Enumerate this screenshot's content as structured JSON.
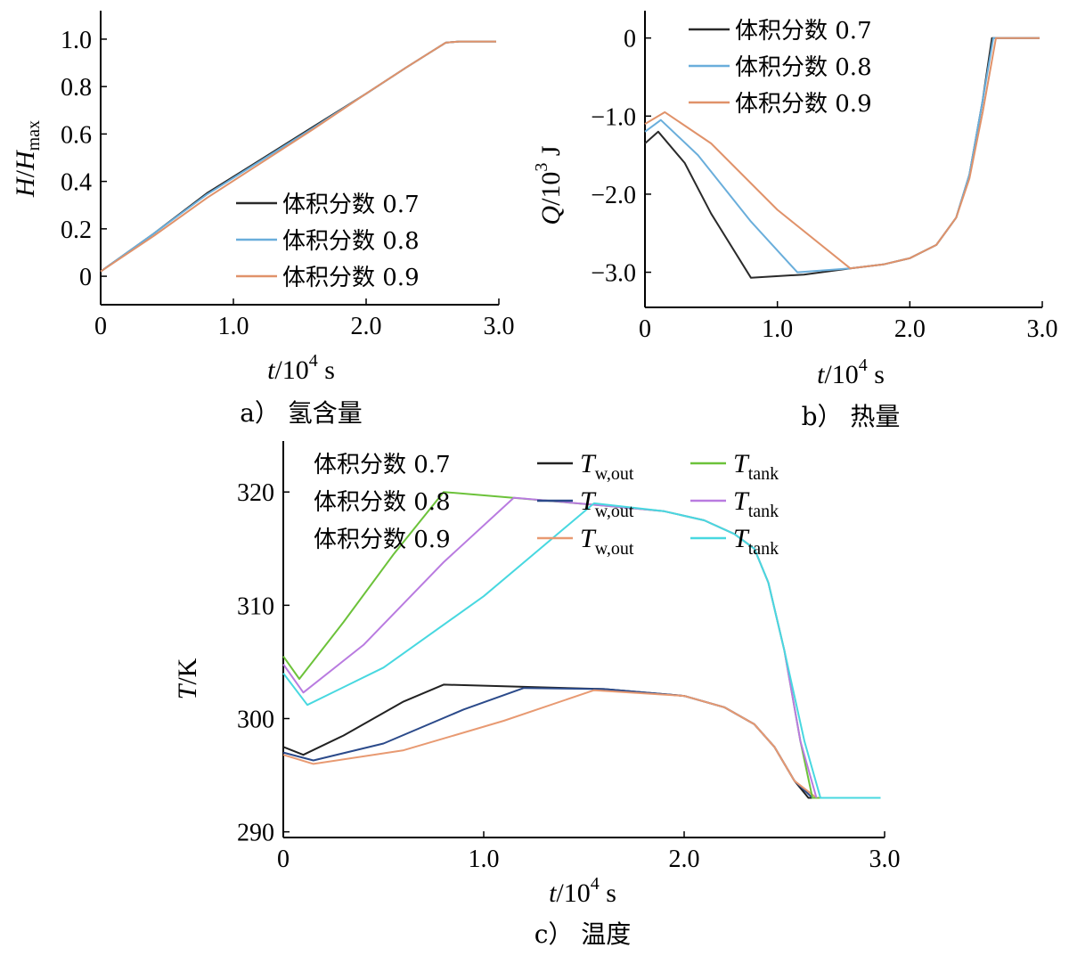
{
  "chart_data": [
    {
      "type": "line",
      "caption": "a） 氢含量",
      "ylabel": {
        "main": "H",
        "sep": "/",
        "main2": "H",
        "sub": "max"
      },
      "xlabel": {
        "var": "t",
        "unit_pre": "/10",
        "exp": "4",
        "unit_post": " s"
      },
      "xlim": [
        0,
        3.0
      ],
      "ylim": [
        -0.12,
        1.12
      ],
      "xticks": [
        "0",
        "1.0",
        "2.0",
        "3.0"
      ],
      "yticks": [
        "0",
        "0.2",
        "0.4",
        "0.6",
        "0.8",
        "1.0"
      ],
      "legend": {
        "position": "right-middle"
      },
      "series": [
        {
          "name": "体积分数 0.7",
          "color": "#2a2a2a",
          "x": [
            0,
            0.4,
            0.8,
            1.2,
            1.6,
            2.0,
            2.3,
            2.5,
            2.6,
            2.7,
            2.98
          ],
          "y": [
            0.02,
            0.18,
            0.35,
            0.49,
            0.63,
            0.77,
            0.88,
            0.95,
            0.985,
            0.99,
            0.99
          ]
        },
        {
          "name": "体积分数 0.8",
          "color": "#6aaedb",
          "x": [
            0,
            0.4,
            0.8,
            1.2,
            1.6,
            2.0,
            2.3,
            2.5,
            2.6,
            2.7,
            2.98
          ],
          "y": [
            0.02,
            0.18,
            0.345,
            0.485,
            0.625,
            0.77,
            0.88,
            0.95,
            0.985,
            0.99,
            0.99
          ]
        },
        {
          "name": "体积分数 0.9",
          "color": "#e0926a",
          "x": [
            0,
            0.4,
            0.8,
            1.2,
            1.6,
            2.0,
            2.3,
            2.5,
            2.6,
            2.7,
            2.98
          ],
          "y": [
            0.02,
            0.17,
            0.33,
            0.475,
            0.62,
            0.77,
            0.88,
            0.95,
            0.985,
            0.99,
            0.99
          ]
        }
      ]
    },
    {
      "type": "line",
      "caption": "b） 热量",
      "ylabel": {
        "main": "Q",
        "unit_pre": "/10",
        "exp": "3",
        "unit_post": " J"
      },
      "xlabel": {
        "var": "t",
        "unit_pre": "/10",
        "exp": "4",
        "unit_post": " s"
      },
      "xlim": [
        0,
        3.0
      ],
      "ylim": [
        -3.45,
        0.35
      ],
      "xticks": [
        "0",
        "1.0",
        "2.0",
        "3.0"
      ],
      "yticks": [
        "0",
        "−1.0",
        "−2.0",
        "−3.0"
      ],
      "legend": {
        "position": "top-right"
      },
      "series": [
        {
          "name": "体积分数 0.7",
          "color": "#2a2a2a",
          "x": [
            0,
            0.1,
            0.3,
            0.5,
            0.8,
            1.2,
            1.55,
            1.8,
            2.0,
            2.2,
            2.35,
            2.45,
            2.55,
            2.62,
            2.65,
            2.98
          ],
          "y": [
            -1.35,
            -1.2,
            -1.6,
            -2.25,
            -3.07,
            -3.03,
            -2.95,
            -2.9,
            -2.82,
            -2.65,
            -2.3,
            -1.75,
            -0.8,
            0.0,
            0.0,
            0.0
          ]
        },
        {
          "name": "体积分数 0.8",
          "color": "#6aaedb",
          "x": [
            0,
            0.12,
            0.4,
            0.8,
            1.15,
            1.55,
            1.8,
            2.0,
            2.2,
            2.35,
            2.45,
            2.55,
            2.63,
            2.66,
            2.98
          ],
          "y": [
            -1.2,
            -1.05,
            -1.5,
            -2.35,
            -3.0,
            -2.95,
            -2.9,
            -2.82,
            -2.65,
            -2.3,
            -1.75,
            -0.8,
            0.0,
            0.0,
            0.0
          ]
        },
        {
          "name": "体积分数 0.9",
          "color": "#e0926a",
          "x": [
            0,
            0.15,
            0.5,
            1.0,
            1.55,
            1.8,
            2.0,
            2.2,
            2.35,
            2.45,
            2.55,
            2.65,
            2.7,
            2.98
          ],
          "y": [
            -1.1,
            -0.95,
            -1.35,
            -2.2,
            -2.95,
            -2.9,
            -2.82,
            -2.65,
            -2.3,
            -1.8,
            -0.95,
            0.0,
            0.0,
            0.0
          ]
        }
      ]
    },
    {
      "type": "line",
      "caption": "c） 温度",
      "ylabel": {
        "main": "T",
        "unit_post": "/K"
      },
      "xlabel": {
        "var": "t",
        "unit_pre": "/10",
        "exp": "4",
        "unit_post": " s"
      },
      "xlim": [
        0,
        3.0
      ],
      "ylim": [
        289.5,
        324.5
      ],
      "xticks": [
        "0",
        "1.0",
        "2.0",
        "3.0"
      ],
      "yticks": [
        "290",
        "300",
        "310",
        "320"
      ],
      "legend": {
        "position": "top",
        "group_labels": [
          "体积分数 0.7",
          "体积分数 0.8",
          "体积分数 0.9"
        ]
      },
      "series": [
        {
          "name": {
            "main": "T",
            "sub": "w,out"
          },
          "color": "#222222",
          "x": [
            0,
            0.1,
            0.3,
            0.6,
            0.8,
            1.2,
            1.6,
            2.0,
            2.2,
            2.35,
            2.45,
            2.55,
            2.62,
            2.65
          ],
          "y": [
            297.5,
            296.8,
            298.5,
            301.5,
            303.0,
            302.8,
            302.6,
            302.0,
            301.0,
            299.5,
            297.5,
            294.5,
            293.0,
            293.0
          ]
        },
        {
          "name": {
            "main": "T",
            "sub": "w,out"
          },
          "color": "#2b4a8a",
          "x": [
            0,
            0.15,
            0.5,
            0.9,
            1.2,
            1.6,
            2.0,
            2.2,
            2.35,
            2.45,
            2.55,
            2.64,
            2.67
          ],
          "y": [
            297.0,
            296.3,
            297.8,
            300.8,
            302.7,
            302.6,
            302.0,
            301.0,
            299.5,
            297.5,
            294.5,
            293.0,
            293.0
          ]
        },
        {
          "name": {
            "main": "T",
            "sub": "w,out"
          },
          "color": "#e89a72",
          "x": [
            0,
            0.15,
            0.6,
            1.1,
            1.55,
            2.0,
            2.2,
            2.35,
            2.45,
            2.55,
            2.66,
            2.7
          ],
          "y": [
            296.8,
            296.0,
            297.2,
            299.8,
            302.5,
            302.0,
            301.0,
            299.5,
            297.5,
            294.5,
            293.0,
            293.0
          ]
        },
        {
          "name": {
            "main": "T",
            "sub": "tank"
          },
          "color": "#6cc23a",
          "x": [
            0,
            0.08,
            0.3,
            0.55,
            0.8,
            1.2,
            1.6,
            1.9,
            2.1,
            2.25,
            2.35,
            2.42,
            2.5,
            2.58,
            2.64,
            2.98
          ],
          "y": [
            305.5,
            303.5,
            308.5,
            314.5,
            320.0,
            319.4,
            318.8,
            318.3,
            317.5,
            316.3,
            315.0,
            312.0,
            306.0,
            298.0,
            293.0,
            293.0
          ]
        },
        {
          "name": {
            "main": "T",
            "sub": "tank"
          },
          "color": "#b97be0",
          "x": [
            0,
            0.1,
            0.4,
            0.8,
            1.15,
            1.6,
            1.9,
            2.1,
            2.25,
            2.35,
            2.42,
            2.5,
            2.58,
            2.66
          ],
          "y": [
            304.8,
            302.3,
            306.5,
            313.8,
            319.5,
            318.8,
            318.3,
            317.5,
            316.3,
            315.0,
            312.0,
            306.0,
            298.0,
            293.0
          ]
        },
        {
          "name": {
            "main": "T",
            "sub": "tank"
          },
          "color": "#48d8e0",
          "x": [
            0,
            0.12,
            0.5,
            1.0,
            1.55,
            1.9,
            2.1,
            2.25,
            2.35,
            2.42,
            2.5,
            2.6,
            2.68,
            2.98
          ],
          "y": [
            304.0,
            301.2,
            304.5,
            310.8,
            319.0,
            318.3,
            317.5,
            316.3,
            315.0,
            312.0,
            306.0,
            298.0,
            293.0,
            293.0
          ]
        }
      ]
    }
  ]
}
